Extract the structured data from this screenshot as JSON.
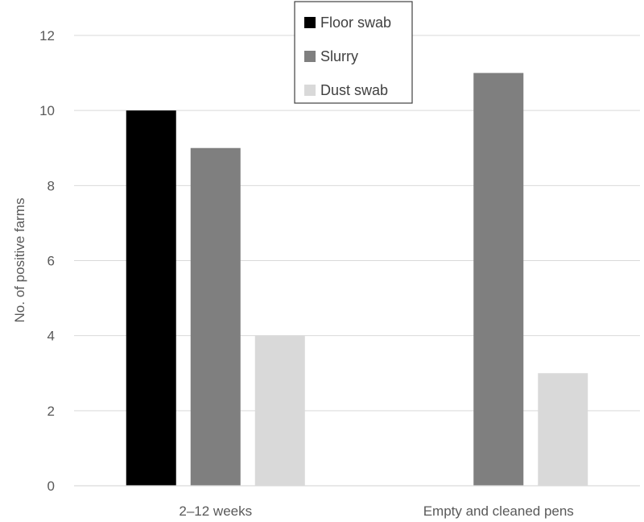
{
  "chart_data": {
    "type": "bar",
    "title": "",
    "xlabel": "",
    "ylabel": "No. of positive farms",
    "ylim": [
      0,
      12
    ],
    "yticks": [
      0,
      2,
      4,
      6,
      8,
      10,
      12
    ],
    "grid": true,
    "legend_position": "top-center",
    "categories": [
      "2–12 weeks",
      "Empty and cleaned pens"
    ],
    "series": [
      {
        "name": "Floor swab",
        "color": "#000000",
        "values": [
          10,
          null
        ]
      },
      {
        "name": "Slurry",
        "color": "#7f7f7f",
        "values": [
          9,
          11
        ]
      },
      {
        "name": "Dust swab",
        "color": "#d9d9d9",
        "values": [
          4,
          3
        ]
      }
    ]
  }
}
